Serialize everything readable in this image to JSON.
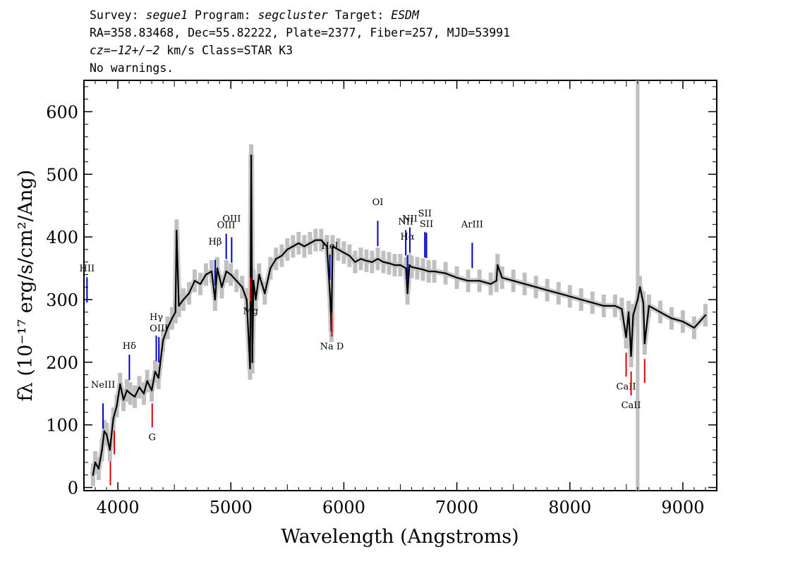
{
  "header": {
    "line1": {
      "survey_label": "Survey: ",
      "survey": "segue1",
      "program_label": " Program: ",
      "program": "segcluster",
      "target_label": " Target: ",
      "target": "ESDM"
    },
    "line2": "RA=358.83468, Dec=55.82222, Plate=2377, Fiber=257, MJD=53991",
    "line3": {
      "cz_label": "cz=",
      "cz": "−12+/−2",
      "cz_unit": " km/s Class=STAR K3"
    },
    "line4": "No warnings."
  },
  "chart_data": {
    "type": "line",
    "xlabel": "Wavelength (Angstroms)",
    "ylabel": "fλ (10⁻¹⁷ erg/s/cm²/Ang)",
    "xlim": [
      3700,
      9300
    ],
    "ylim": [
      -5,
      650
    ],
    "x_ticks": [
      4000,
      5000,
      6000,
      7000,
      8000,
      9000
    ],
    "y_ticks": [
      0,
      100,
      200,
      300,
      400,
      500,
      600
    ],
    "gap_marker_x": 8600,
    "series": [
      {
        "name": "flux",
        "x": [
          3780,
          3800,
          3830,
          3860,
          3880,
          3900,
          3930,
          3960,
          3990,
          4020,
          4050,
          4080,
          4110,
          4150,
          4190,
          4230,
          4260,
          4300,
          4330,
          4360,
          4400,
          4440,
          4480,
          4510,
          4520,
          4540,
          4580,
          4630,
          4680,
          4730,
          4780,
          4830,
          4860,
          4880,
          4920,
          4960,
          5000,
          5050,
          5100,
          5140,
          5170,
          5180,
          5190,
          5200,
          5220,
          5250,
          5300,
          5350,
          5400,
          5450,
          5500,
          5550,
          5600,
          5650,
          5700,
          5750,
          5800,
          5850,
          5880,
          5890,
          5900,
          5950,
          6000,
          6050,
          6100,
          6150,
          6200,
          6250,
          6300,
          6350,
          6400,
          6450,
          6500,
          6550,
          6563,
          6580,
          6600,
          6650,
          6700,
          6750,
          6800,
          6900,
          7000,
          7100,
          7200,
          7300,
          7350,
          7360,
          7400,
          7500,
          7600,
          7700,
          7800,
          7900,
          8000,
          8100,
          8200,
          8300,
          8400,
          8460,
          8498,
          8520,
          8542,
          8560,
          8600,
          8620,
          8650,
          8662,
          8700,
          8800,
          8900,
          9000,
          9100,
          9200
        ],
        "values": [
          20,
          40,
          30,
          60,
          90,
          85,
          60,
          110,
          130,
          165,
          140,
          155,
          150,
          145,
          160,
          150,
          170,
          155,
          185,
          175,
          235,
          255,
          270,
          280,
          410,
          290,
          300,
          310,
          330,
          325,
          340,
          345,
          300,
          350,
          320,
          345,
          340,
          330,
          320,
          300,
          190,
          530,
          200,
          330,
          300,
          340,
          310,
          350,
          365,
          370,
          380,
          385,
          390,
          385,
          390,
          395,
          395,
          385,
          300,
          250,
          385,
          380,
          375,
          370,
          360,
          365,
          362,
          360,
          365,
          360,
          358,
          355,
          355,
          350,
          310,
          355,
          352,
          350,
          348,
          345,
          345,
          342,
          335,
          330,
          330,
          325,
          330,
          355,
          335,
          330,
          325,
          320,
          315,
          310,
          305,
          300,
          295,
          290,
          290,
          285,
          240,
          280,
          210,
          275,
          300,
          320,
          295,
          230,
          290,
          280,
          270,
          265,
          255,
          275
        ]
      }
    ],
    "emission_lines": [
      {
        "label": "HII",
        "x": 3727
      },
      {
        "label": "NeIII",
        "x": 3869
      },
      {
        "label": "Hδ",
        "x": 4102
      },
      {
        "label": "Hγ",
        "x": 4340
      },
      {
        "label": "OIII",
        "x": 4363
      },
      {
        "label": "Hβ",
        "x": 4861
      },
      {
        "label": "OIII",
        "x": 4959
      },
      {
        "label": "OIII",
        "x": 5007
      },
      {
        "label": "HeI",
        "x": 5876
      },
      {
        "label": "OI",
        "x": 6300
      },
      {
        "label": "NII",
        "x": 6548
      },
      {
        "label": "Hα",
        "x": 6563
      },
      {
        "label": "NII",
        "x": 6584
      },
      {
        "label": "SII",
        "x": 6717
      },
      {
        "label": "SII",
        "x": 6731
      },
      {
        "label": "ArIII",
        "x": 7136
      }
    ],
    "absorption_lines": [
      {
        "label": "",
        "x": 3934
      },
      {
        "label": "",
        "x": 3969
      },
      {
        "label": "G",
        "x": 4304
      },
      {
        "label": "Mg",
        "x": 5175
      },
      {
        "label": "Na D",
        "x": 5894
      },
      {
        "label": "CaII",
        "x": 8498
      },
      {
        "label": "CaII",
        "x": 8542
      },
      {
        "label": "",
        "x": 8662
      }
    ],
    "colors": {
      "flux": "#000000",
      "error": "#c0c0c0",
      "emission": "#0000c8",
      "absorption": "#e00000",
      "gap": "#c0c0c0"
    }
  }
}
